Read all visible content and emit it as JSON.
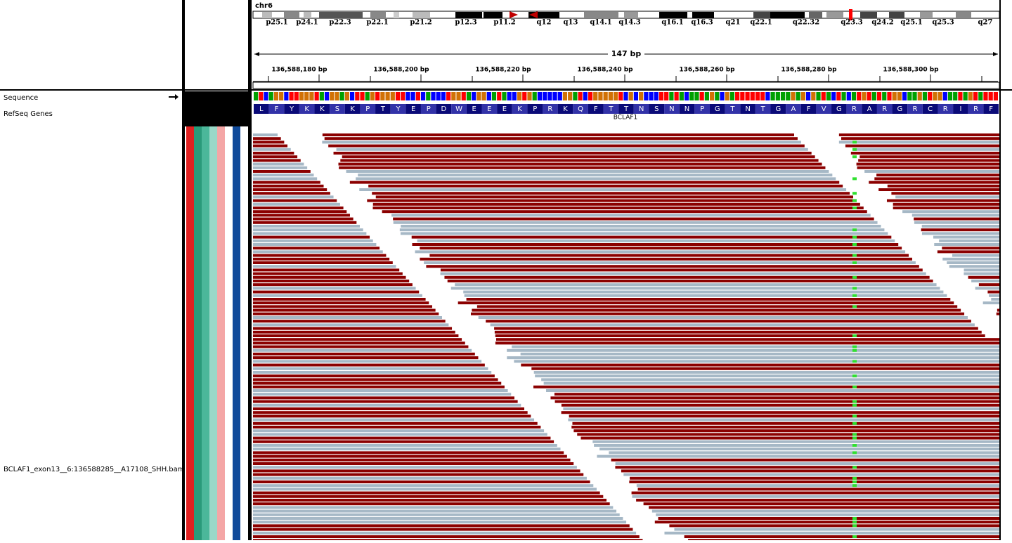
{
  "chromosome": "chr6",
  "bands": [
    "p25.1",
    "p24.1",
    "p22.3",
    "p22.1",
    "p21.2",
    "p12.3",
    "p11.2",
    "q12",
    "q13",
    "q14.1",
    "q14.3",
    "q16.1",
    "q16.3",
    "q21",
    "q22.1",
    "q22.32",
    "q23.3",
    "q24.2",
    "q25.1",
    "q25.3",
    "q27"
  ],
  "span": "147 bp",
  "ruler": [
    "136,588,180 bp",
    "136,588,200 bp",
    "136,588,220 bp",
    "136,588,240 bp",
    "136,588,260 bp",
    "136,588,280 bp",
    "136,588,300 bp"
  ],
  "tracks": {
    "sequence": "Sequence",
    "genes": "RefSeq Genes",
    "bam": "BCLAF1_exon13__6:136588285__A17108_SHH.bam"
  },
  "gene": "BCLAF1",
  "amino_acids": [
    "L",
    "F",
    "Y",
    "K",
    "K",
    "S",
    "K",
    "P",
    "T",
    "Y",
    "E",
    "P",
    "D",
    "W",
    "E",
    "E",
    "E",
    "K",
    "P",
    "R",
    "K",
    "Q",
    "F",
    "T",
    "T",
    "N",
    "S",
    "N",
    "N",
    "P",
    "G",
    "T",
    "N",
    "T",
    "G",
    "A",
    "F",
    "V",
    "G",
    "R",
    "A",
    "R",
    "G",
    "R",
    "C",
    "R",
    "I",
    "R",
    "F"
  ]
}
